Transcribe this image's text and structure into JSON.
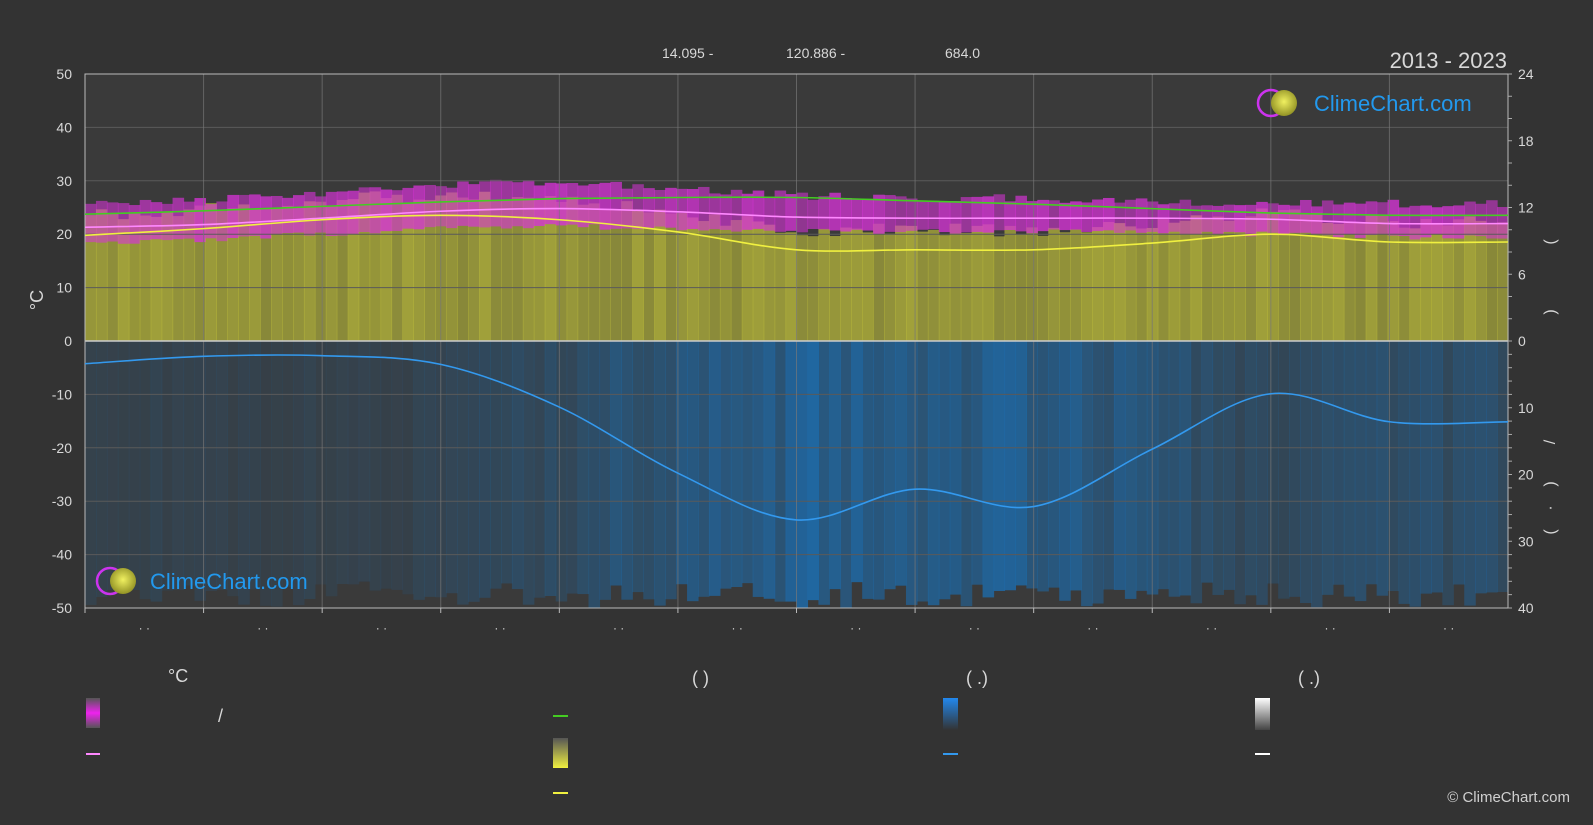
{
  "header": {
    "coord_lat": "14.095 -",
    "coord_lon": "120.886 -",
    "elevation": "684.0",
    "period": "2013 - 2023"
  },
  "brand": {
    "name": "ClimeChart.com",
    "copyright": "© ClimeChart.com"
  },
  "axes": {
    "left_unit": "°C",
    "left_ticks": [
      50,
      40,
      30,
      20,
      10,
      0,
      -10,
      -20,
      -30,
      -40,
      -50
    ],
    "right_top_ticks": [
      24,
      18,
      12,
      6,
      0
    ],
    "right_bottom_ticks": [
      10,
      20,
      30,
      40
    ],
    "right_label_top_marks": [
      "(",
      ")"
    ],
    "right_label_bottom_marks": [
      "/",
      "(",
      "·",
      ")"
    ],
    "month_ticks": [
      "· ·",
      "· ·",
      "· ·",
      "· ·",
      "· ·",
      "· ·",
      "· ·",
      "· ·",
      "· ·",
      "· ·",
      "· ·",
      "· ·"
    ]
  },
  "legend": {
    "col1_header": "°C",
    "col1_range_sep": "/",
    "col2_header": "(          )",
    "col3_header": "(    .)",
    "col4_header": "(    .)"
  },
  "colors": {
    "background": "#333333",
    "plot_bg": "#3a3a3a",
    "grid": "#5a5a5a",
    "temp_band": "#d633d6",
    "temp_avg": "#ff88ff",
    "daylight": "#44cc22",
    "sunshine_band": "#b8b83a",
    "sunshine_line": "#f0f040",
    "rain_band": "#1e6aa8",
    "rain_line": "#3399ee",
    "snow_line": "#ffffff",
    "brand_text": "#2299ee"
  },
  "chart_data": {
    "type": "area",
    "x": [
      0,
      1,
      2,
      3,
      4,
      5,
      6,
      7,
      8,
      9,
      10,
      11,
      12
    ],
    "series": [
      {
        "key": "daylight_hours",
        "axis": "right_top",
        "values": [
          11.4,
          11.7,
          12.1,
          12.5,
          12.8,
          12.9,
          12.9,
          12.6,
          12.3,
          11.9,
          11.5,
          11.3,
          11.3
        ]
      },
      {
        "key": "temp_avg",
        "axis": "left",
        "values": [
          21.3,
          21.8,
          23.0,
          24.3,
          24.8,
          24.2,
          23.2,
          23.0,
          23.0,
          23.0,
          22.8,
          22.0,
          22.0
        ]
      },
      {
        "key": "temp_max",
        "axis": "left",
        "values": [
          25.0,
          25.5,
          27.0,
          28.5,
          29.0,
          28.0,
          26.5,
          26.0,
          26.0,
          25.5,
          25.0,
          25.0,
          25.0
        ]
      },
      {
        "key": "temp_min",
        "axis": "left",
        "values": [
          19.0,
          19.5,
          20.5,
          21.5,
          22.0,
          21.5,
          21.0,
          21.0,
          21.0,
          21.0,
          20.5,
          20.0,
          20.0
        ]
      },
      {
        "key": "sunshine_hours",
        "axis": "right_top",
        "values": [
          9.5,
          10.1,
          10.9,
          11.3,
          10.9,
          9.8,
          8.2,
          8.2,
          8.2,
          8.8,
          9.6,
          8.9,
          8.9
        ]
      },
      {
        "key": "precipitation_mm",
        "axis": "right_bottom",
        "values": [
          3.4,
          2.3,
          2.2,
          3.5,
          9.9,
          19.8,
          26.8,
          22.2,
          24.8,
          16.2,
          7.9,
          12.1,
          12.1
        ]
      }
    ],
    "left_ylim": [
      -50,
      50
    ],
    "right_top_ylim": [
      0,
      24
    ],
    "right_bottom_ylim": [
      0,
      40
    ],
    "grid": true
  }
}
